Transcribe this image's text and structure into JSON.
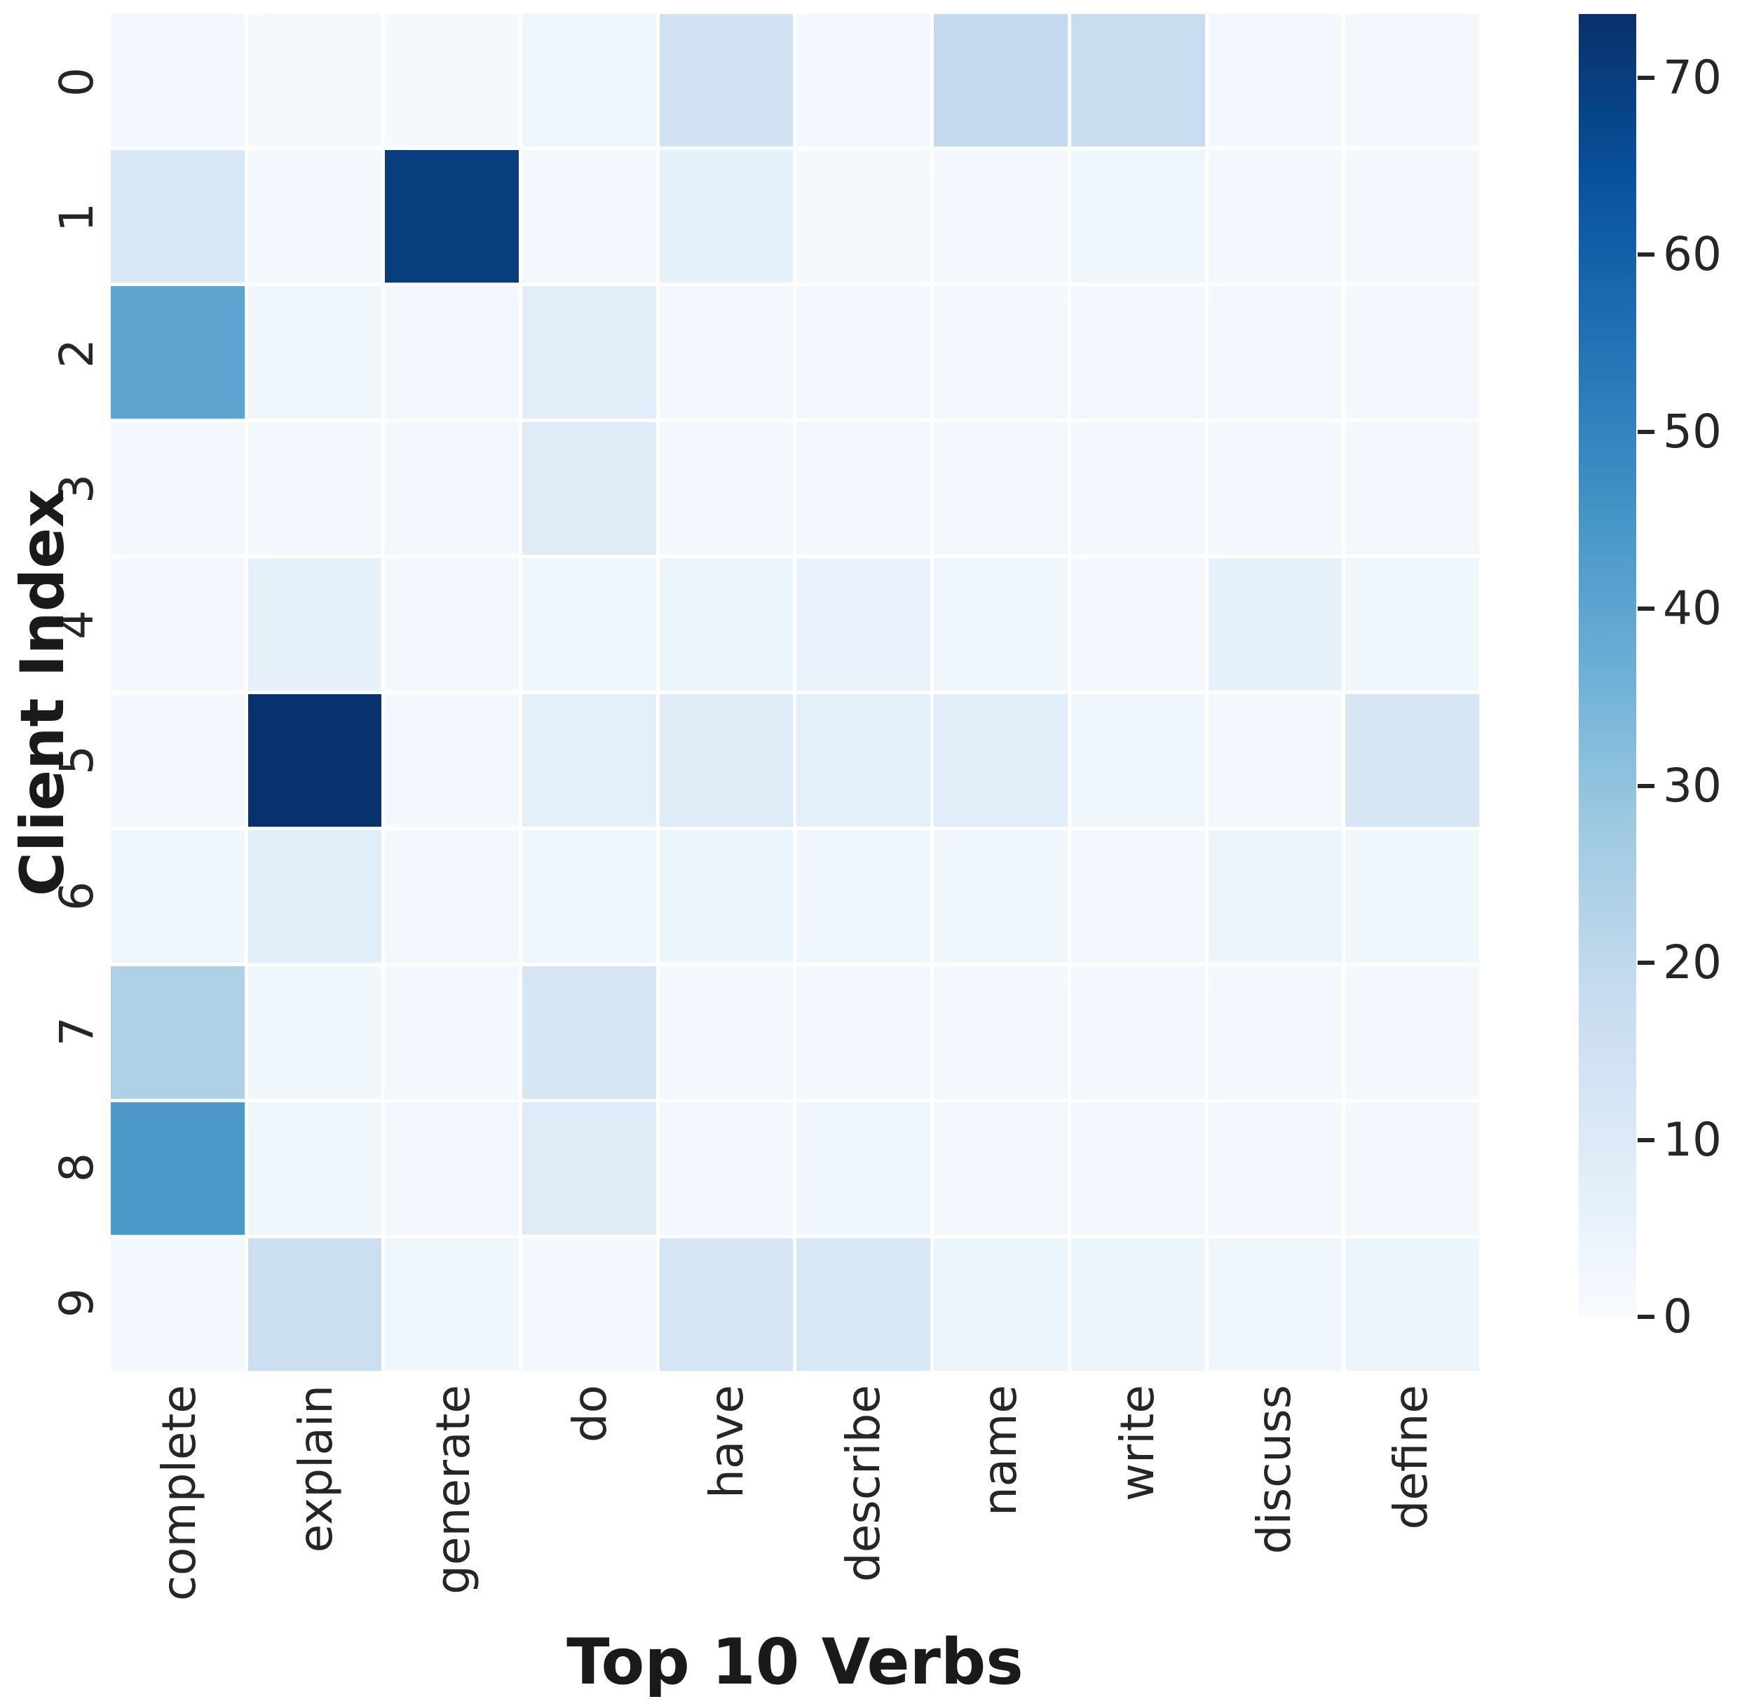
{
  "figure": {
    "background": "#ffffff",
    "tick_text_color": "#262626",
    "axis_label_color": "#1a1a1a"
  },
  "chart_data": {
    "type": "heatmap",
    "title": "",
    "xlabel": "Top 10 Verbs",
    "ylabel": "Client Index",
    "x_categories": [
      "complete",
      "explain",
      "generate",
      "do",
      "have",
      "describe",
      "name",
      "write",
      "discuss",
      "define"
    ],
    "y_categories": [
      "0",
      "1",
      "2",
      "3",
      "4",
      "5",
      "6",
      "7",
      "8",
      "9"
    ],
    "values": [
      [
        2,
        1,
        1,
        3,
        14,
        2,
        19,
        17,
        2,
        2
      ],
      [
        11,
        2,
        70,
        2,
        6,
        1,
        2,
        3,
        2,
        2
      ],
      [
        40,
        3,
        2,
        8,
        2,
        2,
        2,
        2,
        2,
        2
      ],
      [
        2,
        2,
        2,
        9,
        2,
        2,
        2,
        2,
        2,
        2
      ],
      [
        2,
        6,
        2,
        3,
        4,
        5,
        3,
        2,
        6,
        3
      ],
      [
        2,
        73,
        2,
        7,
        9,
        7,
        8,
        3,
        2,
        12
      ],
      [
        3,
        8,
        2,
        3,
        4,
        3,
        3,
        2,
        4,
        3
      ],
      [
        24,
        3,
        2,
        12,
        2,
        2,
        2,
        2,
        2,
        2
      ],
      [
        44,
        3,
        2,
        9,
        2,
        3,
        2,
        2,
        2,
        2
      ],
      [
        2,
        16,
        3,
        2,
        12,
        11,
        4,
        4,
        3,
        4
      ]
    ],
    "colormap": {
      "name": "Blues",
      "anchors": [
        0,
        0.125,
        0.25,
        0.375,
        0.5,
        0.625,
        0.75,
        0.875,
        1.0
      ],
      "colors": [
        "#f7fbff",
        "#deebf7",
        "#c6dbef",
        "#9ecae1",
        "#6baed6",
        "#4292c6",
        "#2171b5",
        "#08519c",
        "#08306b"
      ]
    },
    "colorbar": {
      "position": "right",
      "vmin": 0,
      "vmax": 73.6,
      "ticks": [
        0,
        10,
        20,
        30,
        40,
        50,
        60,
        70
      ]
    },
    "grid_line_color": "#ffffff",
    "legend": "none",
    "grid": "off"
  }
}
